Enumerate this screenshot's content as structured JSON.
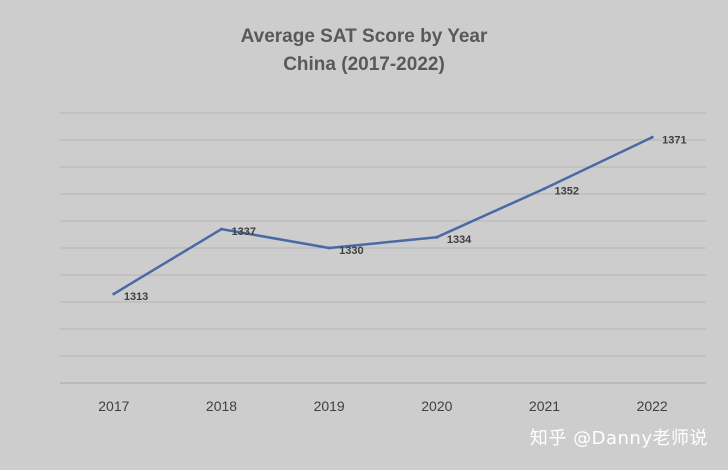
{
  "chart_data": {
    "type": "line",
    "title": "Average SAT Score by Year",
    "subtitle": "China (2017-2022)",
    "categories": [
      "2017",
      "2018",
      "2019",
      "2020",
      "2021",
      "2022"
    ],
    "series": [
      {
        "values": [
          1313,
          1337,
          1330,
          1334,
          1352,
          1371
        ]
      }
    ],
    "data_labels": [
      "1313",
      "1337",
      "1330",
      "1334",
      "1352",
      "1371"
    ],
    "ylim": [
      1280,
      1380
    ],
    "grid": true,
    "y_tick_labels_visible": false,
    "legend": "none",
    "line_color": "#4a6aa5",
    "background_color": "#cdcdcd"
  },
  "watermark": "知乎 @Danny老师说"
}
